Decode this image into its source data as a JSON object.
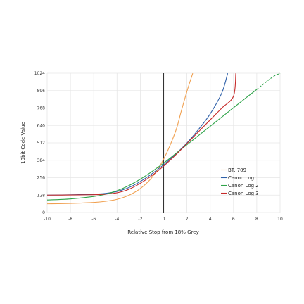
{
  "chart_data": {
    "type": "line",
    "xlabel": "Relative Stop from 18% Grey",
    "ylabel": "10bit Code Value",
    "xlim": [
      -10,
      10
    ],
    "ylim": [
      0,
      1024
    ],
    "x_ticks": [
      "-10",
      "-8",
      "-6",
      "-4",
      "-2",
      "0",
      "2",
      "4",
      "6",
      "8",
      "10"
    ],
    "y_ticks": [
      "0",
      "128",
      "256",
      "384",
      "512",
      "640",
      "768",
      "896",
      "1024"
    ],
    "grid": true,
    "vertical_reference_line": 0,
    "legend_position": "lower-right",
    "series": [
      {
        "name": "BT. 709",
        "color": "#f0a050",
        "x": [
          -10,
          -8,
          -6,
          -5,
          -4,
          -3,
          -2,
          -1,
          0,
          1,
          1.5,
          2,
          2.5
        ],
        "y": [
          64,
          67,
          74,
          82,
          97,
          126,
          176,
          258,
          392,
          590,
          740,
          890,
          1023
        ]
      },
      {
        "name": "Canon Log",
        "color": "#2d5fa8",
        "x": [
          -10,
          -8,
          -6,
          -5,
          -4,
          -3,
          -2,
          -1,
          0,
          1,
          2,
          3,
          4,
          5,
          5.5
        ],
        "y": [
          128,
          130,
          135,
          141,
          155,
          183,
          228,
          285,
          351,
          427,
          511,
          611,
          725,
          880,
          1023
        ]
      },
      {
        "name": "Canon Log 2",
        "color": "#2fa44a",
        "x": [
          -10,
          -8,
          -6,
          -5,
          -4,
          -3,
          -2,
          -1,
          0,
          1,
          2,
          3,
          4,
          5,
          6,
          7,
          8
        ],
        "y": [
          92,
          100,
          118,
          134,
          160,
          197,
          245,
          301,
          363,
          430,
          498,
          566,
          634,
          702,
          770,
          838,
          905
        ],
        "extension": {
          "x": [
            8,
            8.5,
            9,
            9.5,
            10
          ],
          "y": [
            905,
            939,
            973,
            1004,
            1023
          ]
        }
      },
      {
        "name": "Canon Log 3",
        "color": "#c62b2b",
        "x": [
          -10,
          -8,
          -6,
          -5,
          -4,
          -3,
          -2,
          -1,
          0,
          1,
          2,
          3,
          4,
          5,
          6,
          6.2
        ],
        "y": [
          128,
          129,
          131,
          135,
          145,
          170,
          215,
          272,
          341,
          420,
          507,
          594,
          681,
          768,
          855,
          1023
        ]
      }
    ]
  }
}
